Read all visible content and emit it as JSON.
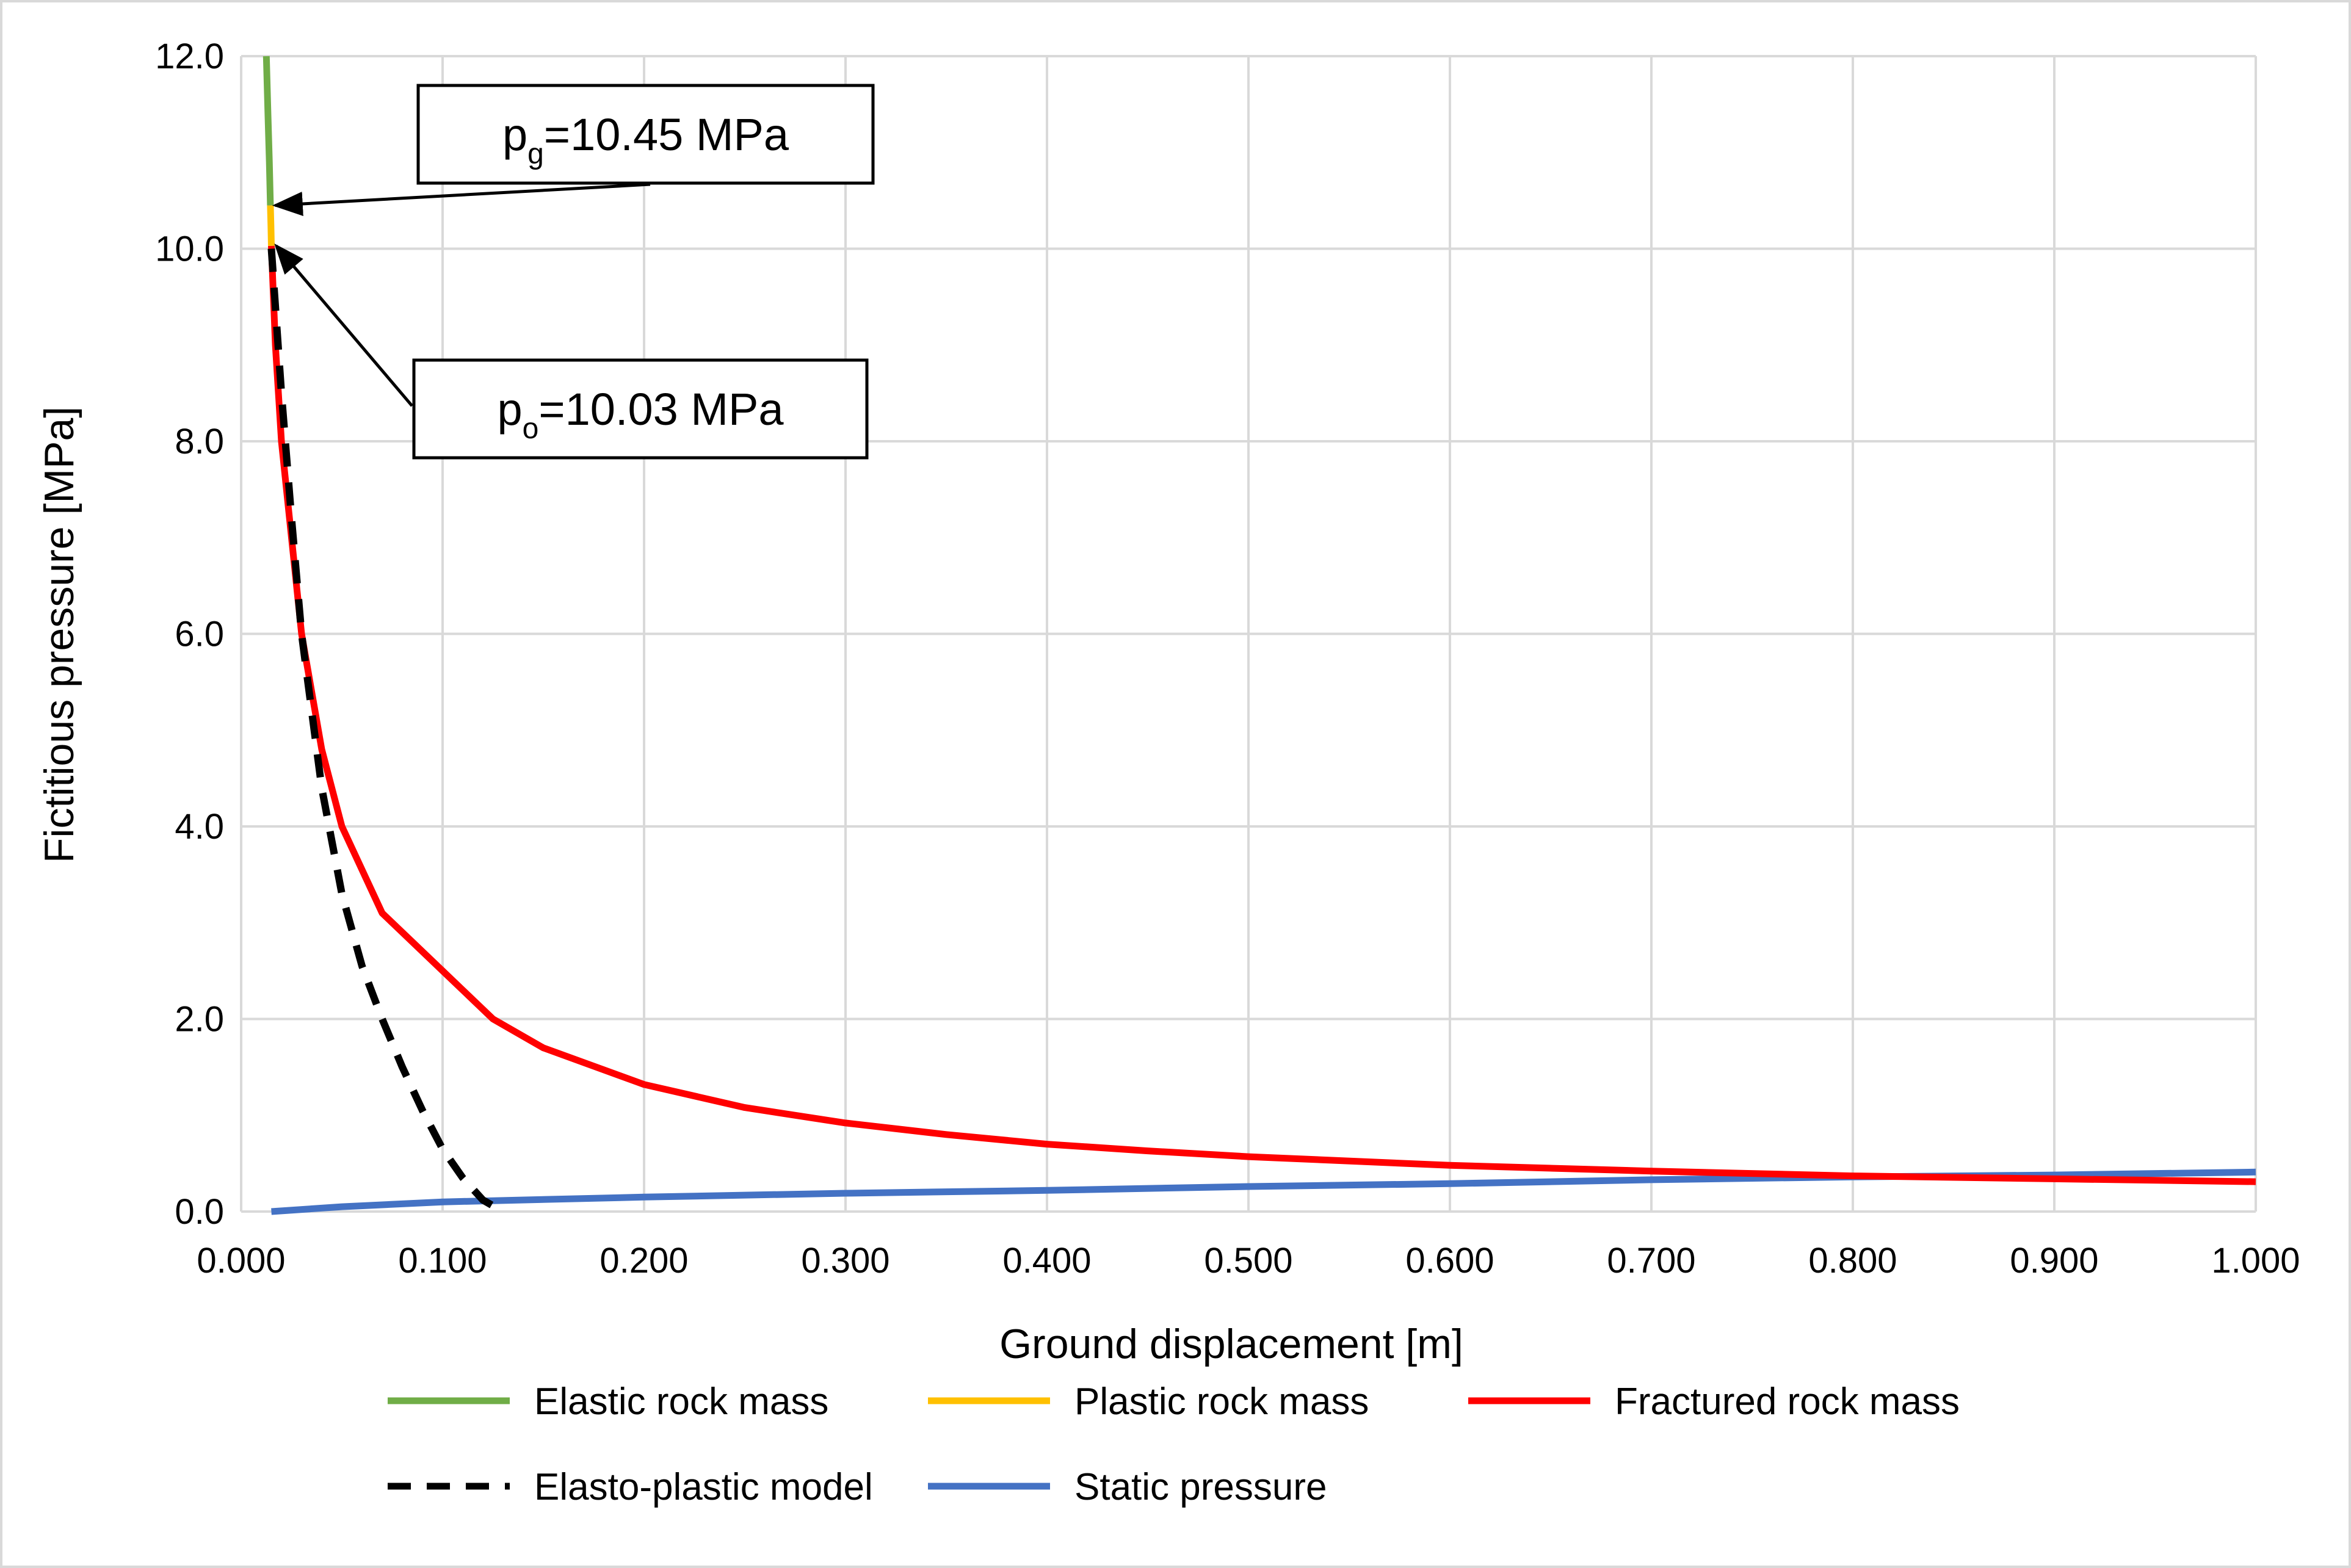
{
  "chart_data": {
    "type": "line",
    "title": "",
    "xlabel": "Ground displacement [m]",
    "ylabel": "Fictitious pressure [MPa]",
    "xlim": [
      0,
      1
    ],
    "ylim": [
      0,
      12
    ],
    "x_ticks": [
      "0.000",
      "0.100",
      "0.200",
      "0.300",
      "0.400",
      "0.500",
      "0.600",
      "0.700",
      "0.800",
      "0.900",
      "1.000"
    ],
    "y_ticks": [
      "0.0",
      "2.0",
      "4.0",
      "6.0",
      "8.0",
      "10.0",
      "12.0"
    ],
    "grid": true,
    "series": [
      {
        "name": "Elastic rock mass",
        "color": "#70ad47",
        "style": "solid",
        "points": [
          [
            0.0125,
            12.0
          ],
          [
            0.0133,
            11.4
          ],
          [
            0.014,
            10.9
          ],
          [
            0.0145,
            10.45
          ]
        ]
      },
      {
        "name": "Plastic rock mass",
        "color": "#ffc000",
        "style": "solid",
        "points": [
          [
            0.0145,
            10.45
          ],
          [
            0.0148,
            10.24
          ],
          [
            0.015,
            10.03
          ]
        ]
      },
      {
        "name": "Fractured rock mass",
        "color": "#ff0000",
        "style": "solid",
        "points": [
          [
            0.015,
            10.03
          ],
          [
            0.017,
            9.0
          ],
          [
            0.02,
            8.0
          ],
          [
            0.025,
            7.0
          ],
          [
            0.03,
            6.0
          ],
          [
            0.04,
            4.8
          ],
          [
            0.05,
            4.0
          ],
          [
            0.07,
            3.1
          ],
          [
            0.1,
            2.5
          ],
          [
            0.125,
            2.0
          ],
          [
            0.15,
            1.7
          ],
          [
            0.2,
            1.32
          ],
          [
            0.25,
            1.08
          ],
          [
            0.3,
            0.92
          ],
          [
            0.35,
            0.8
          ],
          [
            0.4,
            0.7
          ],
          [
            0.45,
            0.63
          ],
          [
            0.5,
            0.57
          ],
          [
            0.6,
            0.48
          ],
          [
            0.7,
            0.42
          ],
          [
            0.8,
            0.37
          ],
          [
            0.9,
            0.34
          ],
          [
            1.0,
            0.31
          ]
        ]
      },
      {
        "name": "Elasto-plastic model",
        "color": "#000000",
        "style": "dashed",
        "points": [
          [
            0.015,
            10.0
          ],
          [
            0.02,
            8.5
          ],
          [
            0.025,
            7.2
          ],
          [
            0.03,
            6.0
          ],
          [
            0.04,
            4.4
          ],
          [
            0.05,
            3.3
          ],
          [
            0.06,
            2.55
          ],
          [
            0.07,
            2.0
          ],
          [
            0.08,
            1.5
          ],
          [
            0.09,
            1.05
          ],
          [
            0.1,
            0.65
          ],
          [
            0.11,
            0.35
          ],
          [
            0.12,
            0.12
          ],
          [
            0.13,
            0.0
          ]
        ]
      },
      {
        "name": "Static pressure",
        "color": "#4472c4",
        "style": "solid",
        "points": [
          [
            0.015,
            0.0
          ],
          [
            0.05,
            0.05
          ],
          [
            0.1,
            0.1
          ],
          [
            0.2,
            0.15
          ],
          [
            0.3,
            0.19
          ],
          [
            0.4,
            0.22
          ],
          [
            0.5,
            0.26
          ],
          [
            0.6,
            0.29
          ],
          [
            0.7,
            0.33
          ],
          [
            0.8,
            0.36
          ],
          [
            0.9,
            0.38
          ],
          [
            1.0,
            0.41
          ]
        ]
      }
    ],
    "annotations": [
      {
        "main": "p",
        "sub": "g",
        "rest": "=10.45 MPa",
        "x": 0.0145,
        "y": 10.45
      },
      {
        "main": "p",
        "sub": "o",
        "rest": "=10.03 MPa",
        "x": 0.015,
        "y": 10.03
      }
    ],
    "legend_position": "bottom"
  }
}
